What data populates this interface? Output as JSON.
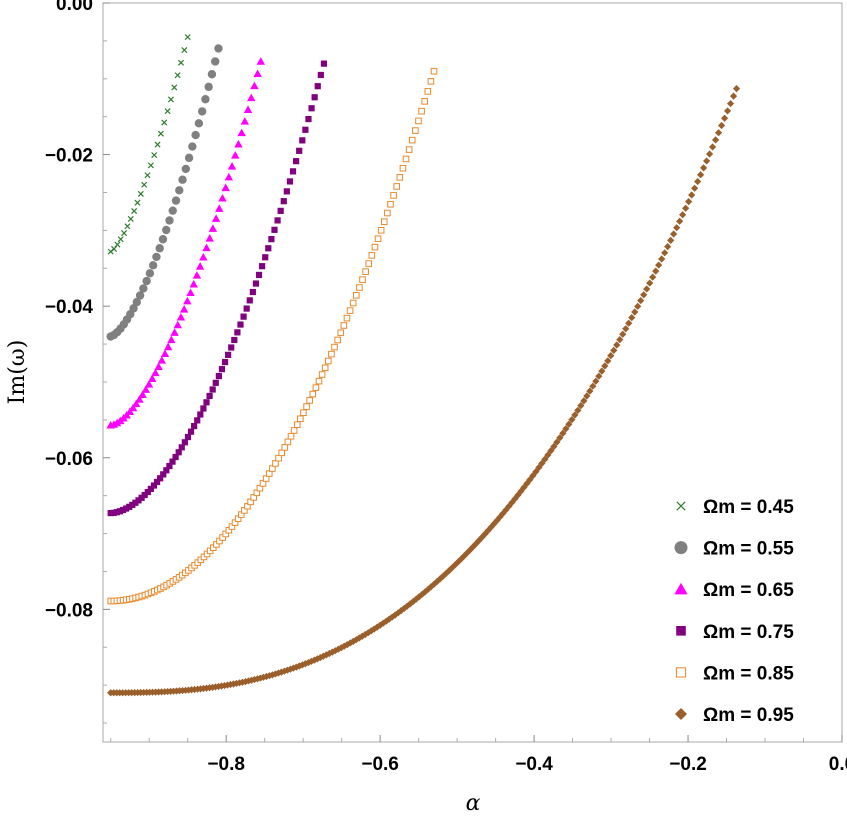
{
  "chart_data": {
    "type": "scatter",
    "xlabel": "α",
    "ylabel": "Im(ω)",
    "xlim": [
      -0.96,
      0.0
    ],
    "ylim": [
      -0.0975,
      0.0
    ],
    "xticks": [
      -0.8,
      -0.6,
      -0.4,
      -0.2,
      0.0
    ],
    "xtick_labels": [
      "−0.8",
      "−0.6",
      "−0.4",
      "−0.2",
      "0.0"
    ],
    "yticks": [
      0.0,
      -0.02,
      -0.04,
      -0.06,
      -0.08
    ],
    "ytick_labels": [
      "0.00",
      "−0.02",
      "−0.04",
      "−0.06",
      "−0.08"
    ],
    "grid": false,
    "legend_position": "bottom-right",
    "series": [
      {
        "name": "Ωm = 0.45",
        "marker": "cross",
        "color": "#2e7d2e",
        "x_start": -0.95,
        "x_end": -0.85,
        "y_start": -0.0328,
        "y_end": -0.0045,
        "curve_power": 1.4,
        "n": 24
      },
      {
        "name": "Ωm = 0.55",
        "marker": "circle",
        "color": "#808080",
        "x_start": -0.95,
        "x_end": -0.81,
        "y_start": -0.044,
        "y_end": -0.006,
        "curve_power": 1.5,
        "n": 34
      },
      {
        "name": "Ωm = 0.65",
        "marker": "triangle",
        "color": "#ff00ff",
        "x_start": -0.95,
        "x_end": -0.755,
        "y_start": -0.0557,
        "y_end": -0.0077,
        "curve_power": 1.6,
        "n": 48
      },
      {
        "name": "Ωm = 0.75",
        "marker": "square",
        "color": "#800080",
        "x_start": -0.95,
        "x_end": -0.673,
        "y_start": -0.0673,
        "y_end": -0.008,
        "curve_power": 1.75,
        "n": 70
      },
      {
        "name": "Ωm = 0.85",
        "marker": "open-square",
        "color": "#e8892c",
        "x_start": -0.95,
        "x_end": -0.53,
        "y_start": -0.0789,
        "y_end": -0.009,
        "curve_power": 2.0,
        "n": 105
      },
      {
        "name": "Ωm = 0.95",
        "marker": "diamond",
        "color": "#9a5f2a",
        "x_start": -0.95,
        "x_end": -0.137,
        "y_start": -0.091,
        "y_end": -0.0113,
        "curve_power": 2.6,
        "n": 210
      }
    ]
  }
}
